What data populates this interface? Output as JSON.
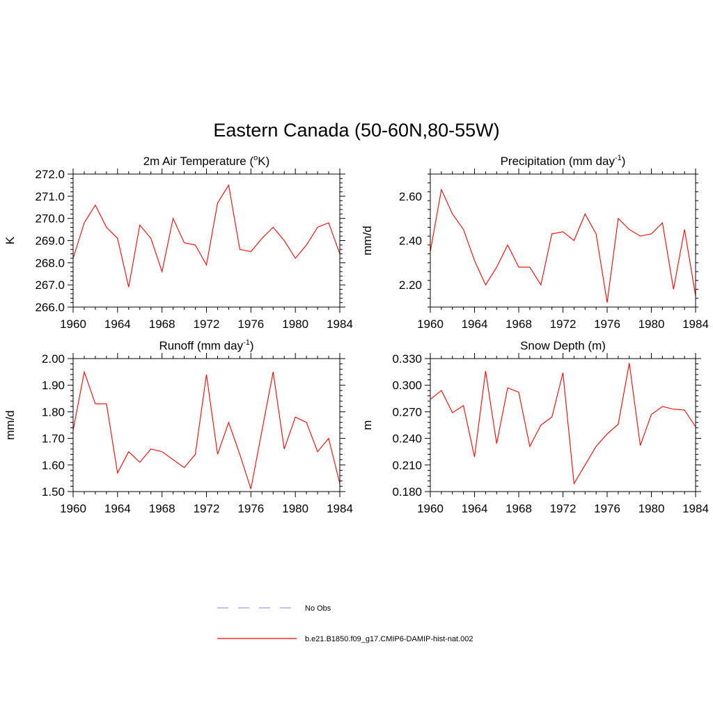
{
  "figure": {
    "title": "Eastern Canada (50-60N,80-55W)"
  },
  "legend": {
    "items": [
      {
        "label": "No Obs",
        "color": "#9999ff",
        "style": "dashed"
      },
      {
        "label": "b.e21.B1850.f09_g17.CMIP6-DAMIP-hist-nat.002",
        "color": "#ff0000",
        "style": "solid"
      }
    ]
  },
  "chart_data": [
    {
      "type": "line",
      "title": "2m Air Temperature (",
      "title_sup": "o",
      "title_end": "K)",
      "ylabel": "K",
      "xlim": [
        1960,
        1984
      ],
      "ylim": [
        266.0,
        272.0
      ],
      "xticks": [
        "1960",
        "1964",
        "1968",
        "1972",
        "1976",
        "1980",
        "1984"
      ],
      "yticks": [
        "266.0",
        "267.0",
        "268.0",
        "269.0",
        "270.0",
        "271.0",
        "272.0"
      ],
      "x": [
        1960,
        1961,
        1962,
        1963,
        1964,
        1965,
        1966,
        1967,
        1968,
        1969,
        1970,
        1971,
        1972,
        1973,
        1974,
        1975,
        1976,
        1977,
        1978,
        1979,
        1980,
        1981,
        1982,
        1983,
        1984
      ],
      "series": [
        {
          "color": "#ff0000",
          "values": [
            268.2,
            269.8,
            270.6,
            269.6,
            269.1,
            266.9,
            269.7,
            269.1,
            267.6,
            270.0,
            268.9,
            268.8,
            267.9,
            270.7,
            271.5,
            268.6,
            268.5,
            269.1,
            269.6,
            269.0,
            268.2,
            268.8,
            269.6,
            269.8,
            268.4
          ]
        }
      ]
    },
    {
      "type": "line",
      "title": "Precipitation (mm day",
      "title_sup": "-1",
      "title_end": ")",
      "ylabel": "mm/d",
      "xlim": [
        1960,
        1984
      ],
      "ylim": [
        2.1,
        2.7
      ],
      "xticks": [
        "1960",
        "1964",
        "1968",
        "1972",
        "1976",
        "1980",
        "1984"
      ],
      "yticks": [
        "2.20",
        "2.40",
        "2.60"
      ],
      "ytick_values": [
        2.2,
        2.4,
        2.6
      ],
      "x": [
        1960,
        1961,
        1962,
        1963,
        1964,
        1965,
        1966,
        1967,
        1968,
        1969,
        1970,
        1971,
        1972,
        1973,
        1974,
        1975,
        1976,
        1977,
        1978,
        1979,
        1980,
        1981,
        1982,
        1983,
        1984
      ],
      "series": [
        {
          "color": "#ff0000",
          "values": [
            2.35,
            2.63,
            2.52,
            2.45,
            2.31,
            2.2,
            2.28,
            2.38,
            2.28,
            2.28,
            2.2,
            2.43,
            2.44,
            2.4,
            2.52,
            2.43,
            2.12,
            2.5,
            2.45,
            2.42,
            2.43,
            2.48,
            2.18,
            2.45,
            2.15
          ]
        }
      ]
    },
    {
      "type": "line",
      "title": "Runoff (mm day",
      "title_sup": "-1",
      "title_end": ")",
      "ylabel": "mm/d",
      "xlim": [
        1960,
        1984
      ],
      "ylim": [
        1.5,
        2.0
      ],
      "xticks": [
        "1960",
        "1964",
        "1968",
        "1972",
        "1976",
        "1980",
        "1984"
      ],
      "yticks": [
        "1.50",
        "1.60",
        "1.70",
        "1.80",
        "1.90",
        "2.00"
      ],
      "x": [
        1960,
        1961,
        1962,
        1963,
        1964,
        1965,
        1966,
        1967,
        1968,
        1969,
        1970,
        1971,
        1972,
        1973,
        1974,
        1975,
        1976,
        1977,
        1978,
        1979,
        1980,
        1981,
        1982,
        1983,
        1984
      ],
      "series": [
        {
          "color": "#ff0000",
          "values": [
            1.73,
            1.95,
            1.83,
            1.83,
            1.57,
            1.65,
            1.61,
            1.66,
            1.65,
            1.62,
            1.59,
            1.64,
            1.94,
            1.64,
            1.76,
            1.64,
            1.51,
            1.73,
            1.95,
            1.66,
            1.78,
            1.76,
            1.65,
            1.7,
            1.53
          ]
        }
      ]
    },
    {
      "type": "line",
      "title": "Snow Depth (m)",
      "title_sup": "",
      "title_end": "",
      "ylabel": "m",
      "xlim": [
        1960,
        1984
      ],
      "ylim": [
        0.18,
        0.33
      ],
      "xticks": [
        "1960",
        "1964",
        "1968",
        "1972",
        "1976",
        "1980",
        "1984"
      ],
      "yticks": [
        "0.180",
        "0.210",
        "0.240",
        "0.270",
        "0.300",
        "0.330"
      ],
      "x": [
        1960,
        1961,
        1962,
        1963,
        1964,
        1965,
        1966,
        1967,
        1968,
        1969,
        1970,
        1971,
        1972,
        1973,
        1974,
        1975,
        1976,
        1977,
        1978,
        1979,
        1980,
        1981,
        1982,
        1983,
        1984
      ],
      "series": [
        {
          "color": "#ff0000",
          "values": [
            0.284,
            0.294,
            0.269,
            0.277,
            0.219,
            0.316,
            0.234,
            0.297,
            0.292,
            0.231,
            0.255,
            0.264,
            0.314,
            0.189,
            0.21,
            0.231,
            0.245,
            0.256,
            0.325,
            0.232,
            0.267,
            0.276,
            0.273,
            0.272,
            0.253
          ]
        }
      ]
    }
  ]
}
